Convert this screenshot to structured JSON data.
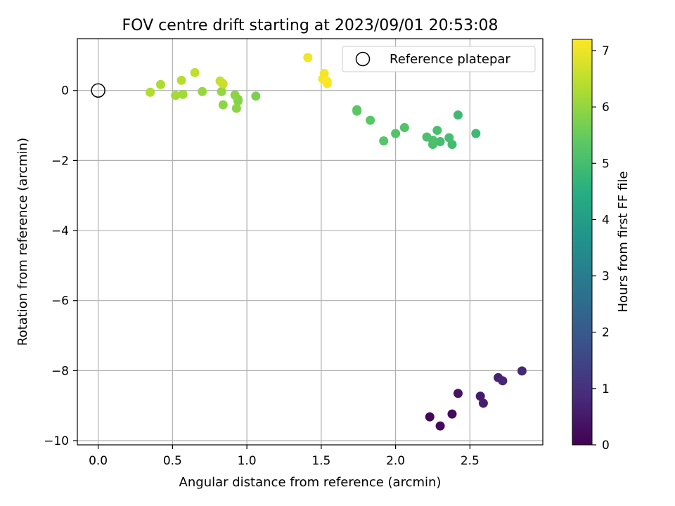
{
  "chart_data": {
    "type": "scatter",
    "title": "FOV centre drift starting at 2023/09/01 20:53:08",
    "xlabel": "Angular distance from reference (arcmin)",
    "ylabel": "Rotation from reference (arcmin)",
    "xlim": [
      -0.14,
      2.99
    ],
    "ylim": [
      -10.12,
      1.48
    ],
    "xticks": [
      0.0,
      0.5,
      1.0,
      1.5,
      2.0,
      2.5
    ],
    "xtick_labels": [
      "0.0",
      "0.5",
      "1.0",
      "1.5",
      "2.0",
      "2.5"
    ],
    "yticks": [
      0,
      -2,
      -4,
      -6,
      -8,
      -10
    ],
    "ytick_labels": [
      "0",
      "−2",
      "−4",
      "−6",
      "−8",
      "−10"
    ],
    "grid": true,
    "colormap": "viridis",
    "colorbar": {
      "label": "Hours from first FF file",
      "range": [
        0,
        7.2
      ],
      "ticks": [
        0,
        1,
        2,
        3,
        4,
        5,
        6,
        7
      ],
      "tick_labels": [
        "0",
        "1",
        "2",
        "3",
        "4",
        "5",
        "6",
        "7"
      ]
    },
    "legend": {
      "position": "top-right",
      "entries": [
        {
          "label": "Reference platepar",
          "marker": "open-circle"
        }
      ]
    },
    "reference_point": {
      "x": 0.0,
      "y": 0.0
    },
    "points": [
      {
        "x": 2.23,
        "y": -9.32,
        "c": 0.1
      },
      {
        "x": 2.3,
        "y": -9.58,
        "c": 0.15
      },
      {
        "x": 2.38,
        "y": -9.24,
        "c": 0.2
      },
      {
        "x": 2.42,
        "y": -8.65,
        "c": 0.4
      },
      {
        "x": 2.57,
        "y": -8.73,
        "c": 0.5
      },
      {
        "x": 2.59,
        "y": -8.93,
        "c": 0.6
      },
      {
        "x": 2.69,
        "y": -8.2,
        "c": 0.7
      },
      {
        "x": 2.72,
        "y": -8.29,
        "c": 0.75
      },
      {
        "x": 2.85,
        "y": -8.01,
        "c": 0.8
      },
      {
        "x": 2.54,
        "y": -1.23,
        "c": 4.85
      },
      {
        "x": 2.42,
        "y": -0.7,
        "c": 4.9
      },
      {
        "x": 2.38,
        "y": -1.54,
        "c": 4.95
      },
      {
        "x": 2.36,
        "y": -1.35,
        "c": 5.0
      },
      {
        "x": 2.3,
        "y": -1.46,
        "c": 5.0
      },
      {
        "x": 2.28,
        "y": -1.14,
        "c": 5.05
      },
      {
        "x": 2.25,
        "y": -1.54,
        "c": 5.05
      },
      {
        "x": 2.25,
        "y": -1.42,
        "c": 5.1
      },
      {
        "x": 2.21,
        "y": -1.33,
        "c": 5.1
      },
      {
        "x": 2.06,
        "y": -1.06,
        "c": 5.2
      },
      {
        "x": 2.0,
        "y": -1.23,
        "c": 5.2
      },
      {
        "x": 1.92,
        "y": -1.44,
        "c": 5.25
      },
      {
        "x": 1.83,
        "y": -0.85,
        "c": 5.3
      },
      {
        "x": 1.74,
        "y": -0.55,
        "c": 5.3
      },
      {
        "x": 1.74,
        "y": -0.59,
        "c": 5.35
      },
      {
        "x": 1.06,
        "y": -0.16,
        "c": 5.75
      },
      {
        "x": 0.94,
        "y": -0.25,
        "c": 5.85
      },
      {
        "x": 0.94,
        "y": -0.3,
        "c": 5.85
      },
      {
        "x": 0.93,
        "y": -0.51,
        "c": 5.9
      },
      {
        "x": 0.92,
        "y": -0.13,
        "c": 5.9
      },
      {
        "x": 0.84,
        "y": -0.41,
        "c": 5.95
      },
      {
        "x": 0.83,
        "y": -0.03,
        "c": 6.0
      },
      {
        "x": 0.7,
        "y": -0.03,
        "c": 6.05
      },
      {
        "x": 0.57,
        "y": -0.11,
        "c": 6.15
      },
      {
        "x": 0.52,
        "y": -0.14,
        "c": 6.2
      },
      {
        "x": 0.35,
        "y": -0.05,
        "c": 6.35
      },
      {
        "x": 0.42,
        "y": 0.17,
        "c": 6.3
      },
      {
        "x": 0.56,
        "y": 0.29,
        "c": 6.4
      },
      {
        "x": 0.65,
        "y": 0.51,
        "c": 6.5
      },
      {
        "x": 0.82,
        "y": 0.27,
        "c": 6.55
      },
      {
        "x": 0.84,
        "y": 0.19,
        "c": 6.6
      },
      {
        "x": 0.83,
        "y": 0.23,
        "c": 6.6
      },
      {
        "x": 1.41,
        "y": 0.94,
        "c": 7.05
      },
      {
        "x": 1.52,
        "y": 0.49,
        "c": 7.1
      },
      {
        "x": 1.51,
        "y": 0.33,
        "c": 7.1
      },
      {
        "x": 1.53,
        "y": 0.29,
        "c": 7.15
      },
      {
        "x": 1.54,
        "y": 0.2,
        "c": 7.15
      },
      {
        "x": 1.54,
        "y": 0.26,
        "c": 7.2
      }
    ]
  }
}
